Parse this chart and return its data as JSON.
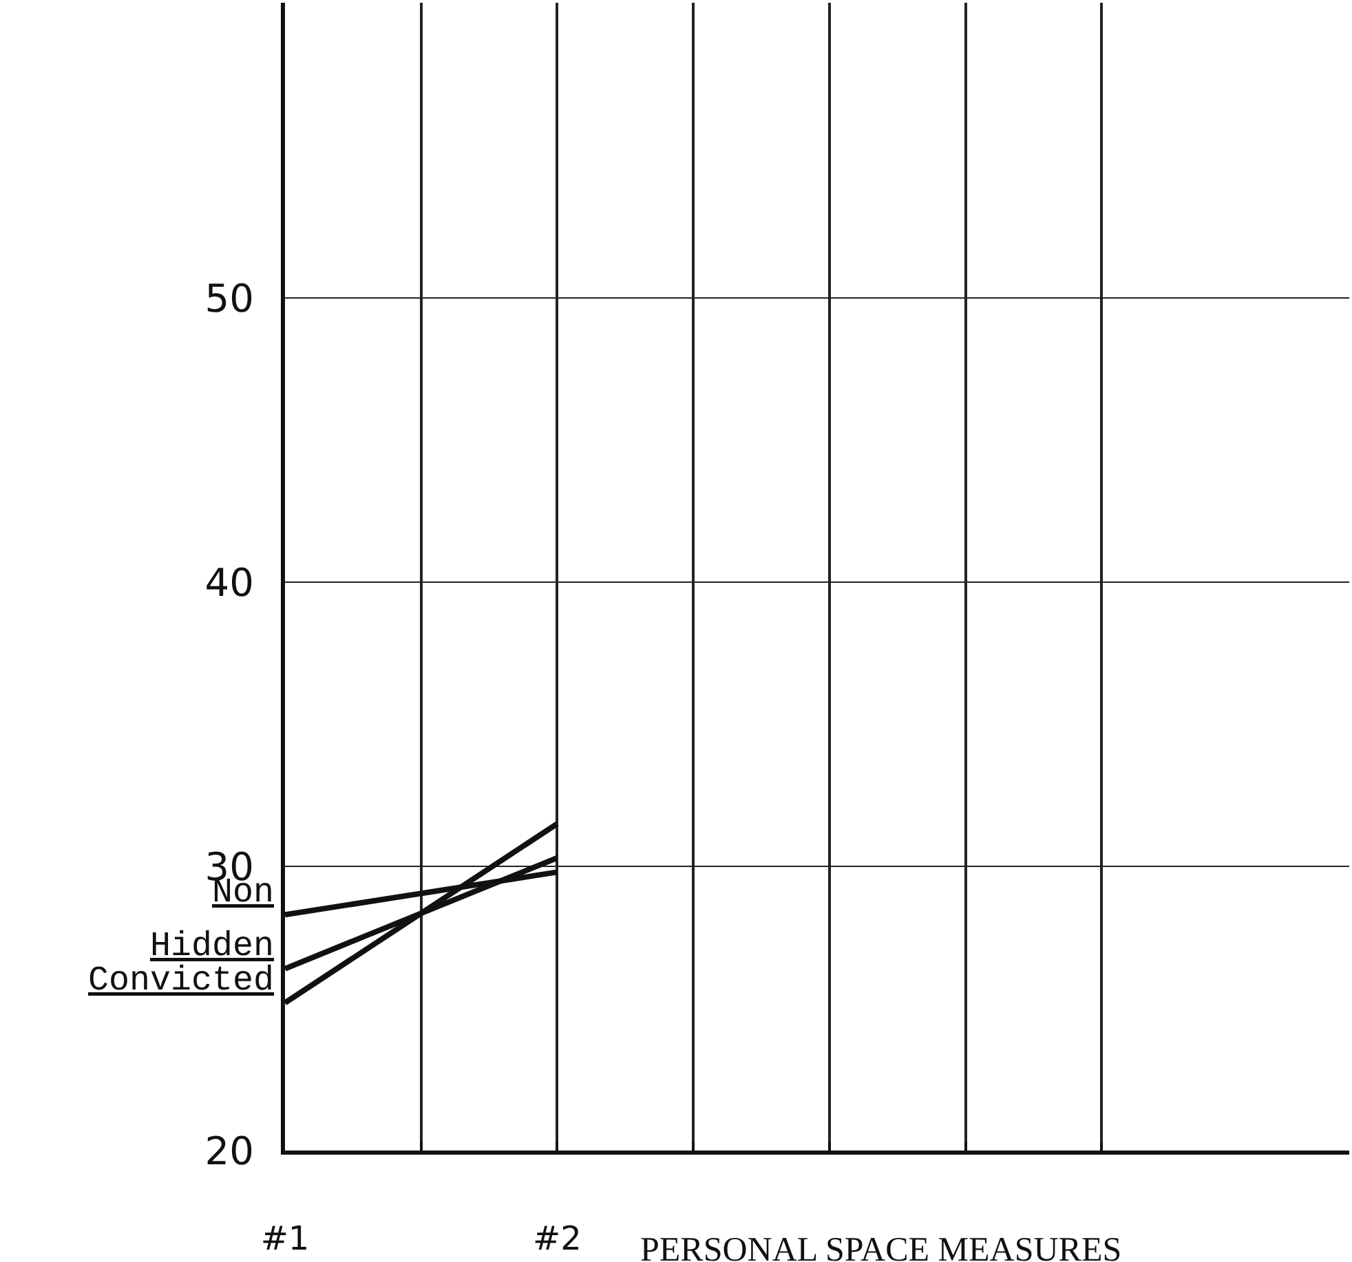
{
  "chart_data": {
    "type": "line",
    "xlabel": "PERSONAL SPACE MEASURES",
    "x": [
      1,
      2
    ],
    "series": [
      {
        "name": "Non",
        "color": "#111111",
        "values": [
          28.3,
          29.8
        ]
      },
      {
        "name": "Hidden",
        "color": "#111111",
        "values": [
          26.4,
          30.3
        ]
      },
      {
        "name": "Convicted",
        "color": "#111111",
        "values": [
          25.2,
          31.5
        ]
      }
    ],
    "xlim": [
      1,
      4.91
    ],
    "xticks": [
      {
        "value": 1,
        "label": "#1"
      },
      {
        "value": 1.5,
        "label": null
      },
      {
        "value": 2,
        "label": "#2"
      },
      {
        "value": 2.5,
        "label": null
      },
      {
        "value": 3,
        "label": null
      },
      {
        "value": 3.5,
        "label": null
      },
      {
        "value": 4,
        "label": null
      }
    ],
    "ylim": [
      20,
      60.4
    ],
    "yticks": [
      20,
      30,
      40,
      50
    ],
    "grid": true,
    "legend": false,
    "marker": "none",
    "line_style": "solid"
  }
}
